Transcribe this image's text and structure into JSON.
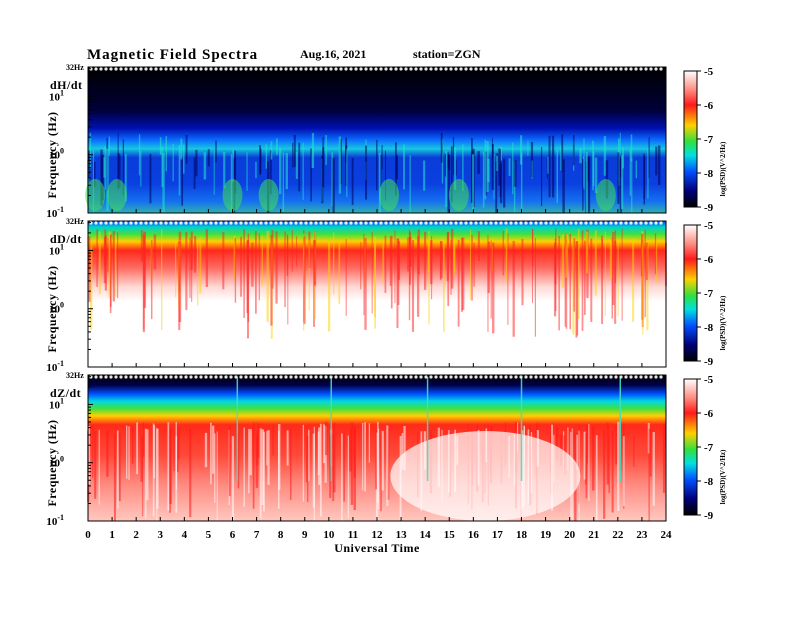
{
  "header": {
    "title": "Magnetic  Field  Spectra",
    "date": "Aug.16, 2021",
    "station": "station=ZGN"
  },
  "xaxis": {
    "label": "Universal Time",
    "ticks": [
      "0",
      "1",
      "2",
      "3",
      "4",
      "5",
      "6",
      "7",
      "8",
      "9",
      "10",
      "11",
      "12",
      "13",
      "14",
      "15",
      "16",
      "17",
      "18",
      "19",
      "20",
      "21",
      "22",
      "23",
      "24"
    ]
  },
  "colorbar": {
    "ticks": [
      "-5",
      "-6",
      "-7",
      "-8",
      "-9"
    ],
    "label": "log(PSD)(V^2/Hz)",
    "colors": [
      "#ffffff",
      "#ff2a1a",
      "#ffd200",
      "#30e040",
      "#00e0e0",
      "#0050ff",
      "#00006a",
      "#000000"
    ]
  },
  "chart_data": [
    {
      "type": "heatmap",
      "component": "dH/dt",
      "ylabel": "Frequency (Hz)",
      "yscale": "log",
      "ylim": [
        0.1,
        32
      ],
      "yticks": [
        {
          "exp": "-1"
        },
        {
          "exp": "0"
        },
        {
          "exp": "1"
        }
      ],
      "top_label": "32Hz",
      "xlim": [
        0,
        24
      ],
      "zlim": [
        -9,
        -5
      ],
      "description_level": "mostly dark blue/black (log PSD about -9 to -8) with cyan/green band near 1 Hz and green/yellow bursts at low frequency"
    },
    {
      "type": "heatmap",
      "component": "dD/dt",
      "ylabel": "Frequency (Hz)",
      "yscale": "log",
      "ylim": [
        0.1,
        32
      ],
      "yticks": [
        {
          "exp": "-1"
        },
        {
          "exp": "0"
        },
        {
          "exp": "1"
        }
      ],
      "top_label": "32Hz",
      "xlim": [
        0,
        24
      ],
      "zlim": [
        -9,
        -5
      ],
      "description_level": "blue/green/yellow band at top (about 10-32 Hz) over red streaks, white (PSD about -5) below about 3 Hz"
    },
    {
      "type": "heatmap",
      "component": "dZ/dt",
      "ylabel": "Frequency (Hz)",
      "yscale": "log",
      "ylim": [
        0.1,
        32
      ],
      "yticks": [
        {
          "exp": "-1"
        },
        {
          "exp": "0"
        },
        {
          "exp": "1"
        }
      ],
      "top_label": "32Hz",
      "xlim": [
        0,
        24
      ],
      "zlim": [
        -9,
        -5
      ],
      "description_level": "black top (about 20-32 Hz), blue/cyan/green/yellow band around 5-15 Hz, red and white below"
    }
  ]
}
